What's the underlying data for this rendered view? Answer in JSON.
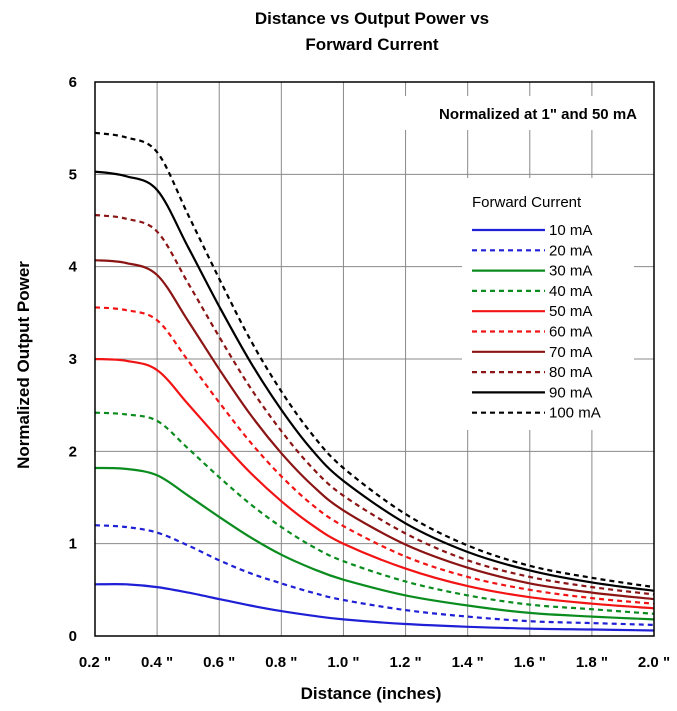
{
  "chart_data": {
    "type": "line",
    "title_line1": "Distance vs Output Power vs",
    "title_line2": "Forward Current",
    "xlabel": "Distance (inches)",
    "ylabel": "Normalized Output Power",
    "annotation": "Normalized at 1\" and 50 mA",
    "legend_title": "Forward Current",
    "legend_position": "right",
    "grid": true,
    "xlim": [
      0.2,
      2.0
    ],
    "ylim": [
      0,
      6
    ],
    "x_ticks": [
      "0.2 \"",
      "0.4 \"",
      "0.6 \"",
      "0.8 \"",
      "1.0 \"",
      "1.2 \"",
      "1.4 \"",
      "1.6 \"",
      "1.8 \"",
      "2.0 \""
    ],
    "y_ticks": [
      "0",
      "1",
      "2",
      "3",
      "4",
      "5",
      "6"
    ],
    "x": [
      0.2,
      0.3,
      0.4,
      0.5,
      0.6,
      0.7,
      0.8,
      0.9,
      1.0,
      1.2,
      1.4,
      1.6,
      1.8,
      2.0
    ],
    "series": [
      {
        "name": "10 mA",
        "color": "#1f1fd6",
        "dash": false,
        "values": [
          0.56,
          0.56,
          0.53,
          0.47,
          0.4,
          0.33,
          0.27,
          0.22,
          0.18,
          0.13,
          0.1,
          0.08,
          0.07,
          0.06
        ]
      },
      {
        "name": "20 mA",
        "color": "#1f1fd6",
        "dash": true,
        "values": [
          1.2,
          1.18,
          1.12,
          0.98,
          0.82,
          0.68,
          0.57,
          0.47,
          0.39,
          0.28,
          0.21,
          0.16,
          0.14,
          0.12
        ]
      },
      {
        "name": "30 mA",
        "color": "#0a8c1e",
        "dash": false,
        "values": [
          1.82,
          1.81,
          1.74,
          1.52,
          1.29,
          1.07,
          0.88,
          0.73,
          0.61,
          0.44,
          0.33,
          0.25,
          0.21,
          0.18
        ]
      },
      {
        "name": "40 mA",
        "color": "#0a8c1e",
        "dash": true,
        "values": [
          2.42,
          2.4,
          2.33,
          2.03,
          1.72,
          1.43,
          1.18,
          0.97,
          0.81,
          0.59,
          0.44,
          0.34,
          0.29,
          0.24
        ]
      },
      {
        "name": "50 mA",
        "color": "#f21414",
        "dash": false,
        "values": [
          3.0,
          2.98,
          2.88,
          2.51,
          2.13,
          1.77,
          1.46,
          1.2,
          1.0,
          0.73,
          0.54,
          0.42,
          0.35,
          0.3
        ]
      },
      {
        "name": "60 mA",
        "color": "#f21414",
        "dash": true,
        "values": [
          3.56,
          3.53,
          3.42,
          2.98,
          2.53,
          2.1,
          1.73,
          1.42,
          1.19,
          0.86,
          0.64,
          0.5,
          0.41,
          0.35
        ]
      },
      {
        "name": "70 mA",
        "color": "#8b1414",
        "dash": false,
        "values": [
          4.07,
          4.04,
          3.91,
          3.41,
          2.89,
          2.4,
          1.98,
          1.63,
          1.36,
          0.99,
          0.74,
          0.57,
          0.47,
          0.4
        ]
      },
      {
        "name": "80 mA",
        "color": "#8b1414",
        "dash": true,
        "values": [
          4.56,
          4.52,
          4.38,
          3.82,
          3.24,
          2.69,
          2.22,
          1.82,
          1.52,
          1.11,
          0.82,
          0.64,
          0.53,
          0.45
        ]
      },
      {
        "name": "90 mA",
        "color": "#000000",
        "dash": false,
        "values": [
          5.03,
          4.98,
          4.83,
          4.21,
          3.57,
          2.97,
          2.45,
          2.01,
          1.68,
          1.22,
          0.91,
          0.71,
          0.58,
          0.49
        ]
      },
      {
        "name": "100 mA",
        "color": "#000000",
        "dash": true,
        "values": [
          5.45,
          5.4,
          5.24,
          4.56,
          3.87,
          3.21,
          2.65,
          2.18,
          1.82,
          1.32,
          0.98,
          0.76,
          0.63,
          0.53
        ]
      }
    ]
  }
}
